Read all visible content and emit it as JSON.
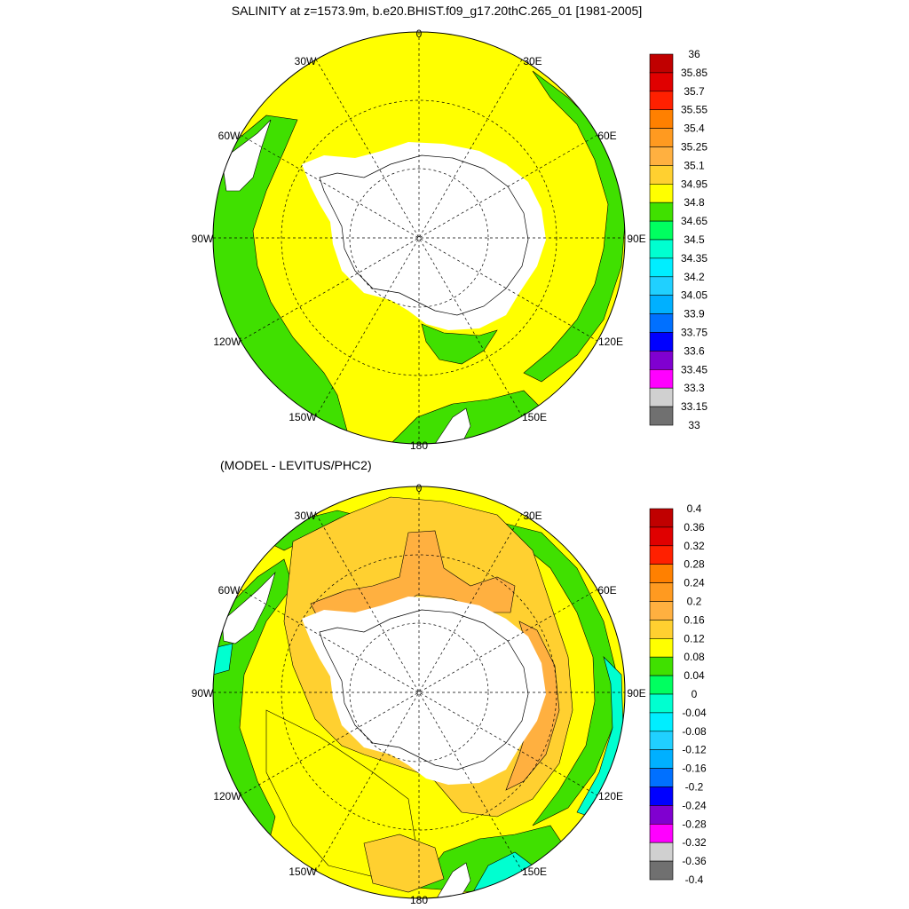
{
  "top_panel": {
    "title": "SALINITY at z=1573.9m, b.e20.BHIST.f09_g17.20thC.265_01 [1981-2005]",
    "lon_labels": {
      "l0": "0",
      "l30e": "30E",
      "l60e": "60E",
      "l90e": "90E",
      "l120e": "120E",
      "l150e": "150E",
      "l180": "180",
      "l150w": "150W",
      "l120w": "120W",
      "l90w": "90W",
      "l60w": "60W",
      "l30w": "30W"
    },
    "colorbar": {
      "labels": [
        "36",
        "35.85",
        "35.7",
        "35.55",
        "35.4",
        "35.25",
        "35.1",
        "34.95",
        "34.8",
        "34.65",
        "34.5",
        "34.35",
        "34.2",
        "34.05",
        "33.9",
        "33.75",
        "33.6",
        "33.45",
        "33.3",
        "33.15",
        "33"
      ],
      "colors": [
        "#c00000",
        "#e00000",
        "#ff2000",
        "#ff8000",
        "#ff9a20",
        "#ffb040",
        "#ffd030",
        "#ffff00",
        "#40e000",
        "#00ff60",
        "#00ffd0",
        "#00eeff",
        "#20d0ff",
        "#00b0ff",
        "#0070ff",
        "#0000ff",
        "#8000d0",
        "#ff00ff",
        "#d0d0d0",
        "#707070"
      ]
    }
  },
  "bottom_panel": {
    "title": "(MODEL - LEVITUS/PHC2)",
    "lon_labels": {
      "l0": "0",
      "l30e": "30E",
      "l60e": "60E",
      "l90e": "90E",
      "l120e": "120E",
      "l150e": "150E",
      "l180": "180",
      "l150w": "150W",
      "l120w": "120W",
      "l90w": "90W",
      "l60w": "60W",
      "l30w": "30W"
    },
    "colorbar": {
      "labels": [
        "0.4",
        "0.36",
        "0.32",
        "0.28",
        "0.24",
        "0.2",
        "0.16",
        "0.12",
        "0.08",
        "0.04",
        "0",
        "-0.04",
        "-0.08",
        "-0.12",
        "-0.16",
        "-0.2",
        "-0.24",
        "-0.28",
        "-0.32",
        "-0.36",
        "-0.4"
      ],
      "colors": [
        "#c00000",
        "#e00000",
        "#ff2000",
        "#ff8000",
        "#ff9a20",
        "#ffb040",
        "#ffd030",
        "#ffff00",
        "#40e000",
        "#00ff60",
        "#00ffd0",
        "#00eeff",
        "#20d0ff",
        "#00b0ff",
        "#0070ff",
        "#0000ff",
        "#8000d0",
        "#ff00ff",
        "#d0d0d0",
        "#707070"
      ]
    }
  },
  "colors": {
    "land": "#ffffff",
    "top_dominant": "#ffff00",
    "top_secondary": "#40e000",
    "bottom_dominant": "#ffff00",
    "bottom_orange_light": "#ffd030",
    "bottom_orange_mid": "#ffb040",
    "bottom_green": "#40e000",
    "bottom_cyan": "#00ffd0"
  }
}
